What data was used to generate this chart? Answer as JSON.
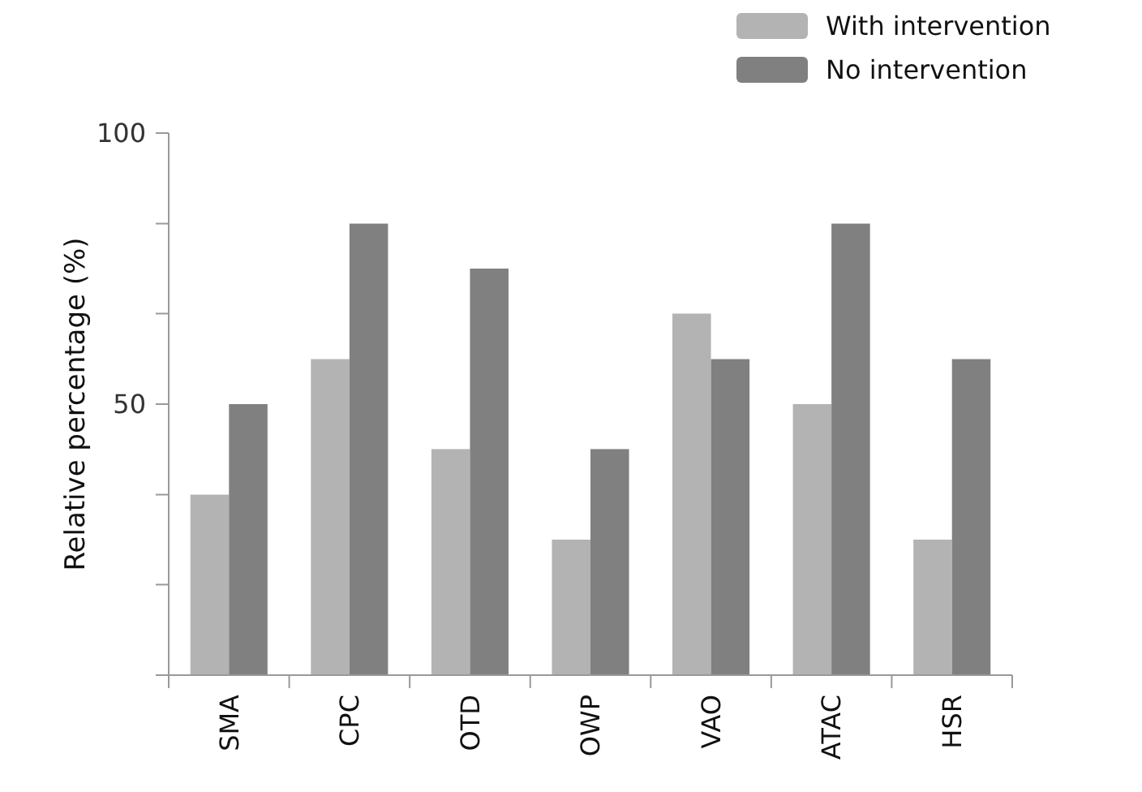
{
  "chart_data": {
    "type": "bar",
    "ylabel": "Relative percentage (%)",
    "categories": [
      "SMA",
      "CPC",
      "OTD",
      "OWP",
      "VAO",
      "ATAC",
      "HSR"
    ],
    "series": [
      {
        "name": "With intervention",
        "color": "#b3b3b3",
        "values": [
          33.3,
          58.3,
          41.7,
          25,
          66.7,
          50,
          25
        ]
      },
      {
        "name": "No intervention",
        "color": "#808080",
        "values": [
          50,
          83.3,
          75,
          41.7,
          58.3,
          83.3,
          58.3
        ]
      }
    ],
    "ylim": [
      0,
      100
    ],
    "yticks": [
      {
        "value": 0,
        "label": null
      },
      {
        "value": 16.7,
        "label": null
      },
      {
        "value": 33.3,
        "label": null
      },
      50,
      {
        "value": 66.7,
        "label": null
      },
      {
        "value": 83.3,
        "label": null
      },
      100
    ],
    "grid": false,
    "legend": "top right"
  }
}
